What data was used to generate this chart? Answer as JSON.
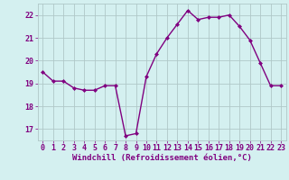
{
  "x": [
    0,
    1,
    2,
    3,
    4,
    5,
    6,
    7,
    8,
    9,
    10,
    11,
    12,
    13,
    14,
    15,
    16,
    17,
    18,
    19,
    20,
    21,
    22,
    23
  ],
  "y": [
    19.5,
    19.1,
    19.1,
    18.8,
    18.7,
    18.7,
    18.9,
    18.9,
    16.7,
    16.8,
    19.3,
    20.3,
    21.0,
    21.6,
    22.2,
    21.8,
    21.9,
    21.9,
    22.0,
    21.5,
    20.9,
    19.9,
    18.9,
    18.9
  ],
  "line_color": "#800080",
  "marker": "D",
  "marker_size": 2.0,
  "bg_color": "#d4f0f0",
  "grid_color": "#b0c8c8",
  "xlabel": "Windchill (Refroidissement éolien,°C)",
  "xlabel_color": "#800080",
  "tick_color": "#800080",
  "ylim": [
    16.5,
    22.5
  ],
  "xlim": [
    -0.5,
    23.5
  ],
  "yticks": [
    17,
    18,
    19,
    20,
    21,
    22
  ],
  "xticks": [
    0,
    1,
    2,
    3,
    4,
    5,
    6,
    7,
    8,
    9,
    10,
    11,
    12,
    13,
    14,
    15,
    16,
    17,
    18,
    19,
    20,
    21,
    22,
    23
  ],
  "linewidth": 1.0,
  "tick_fontsize": 6.0,
  "xlabel_fontsize": 6.5
}
